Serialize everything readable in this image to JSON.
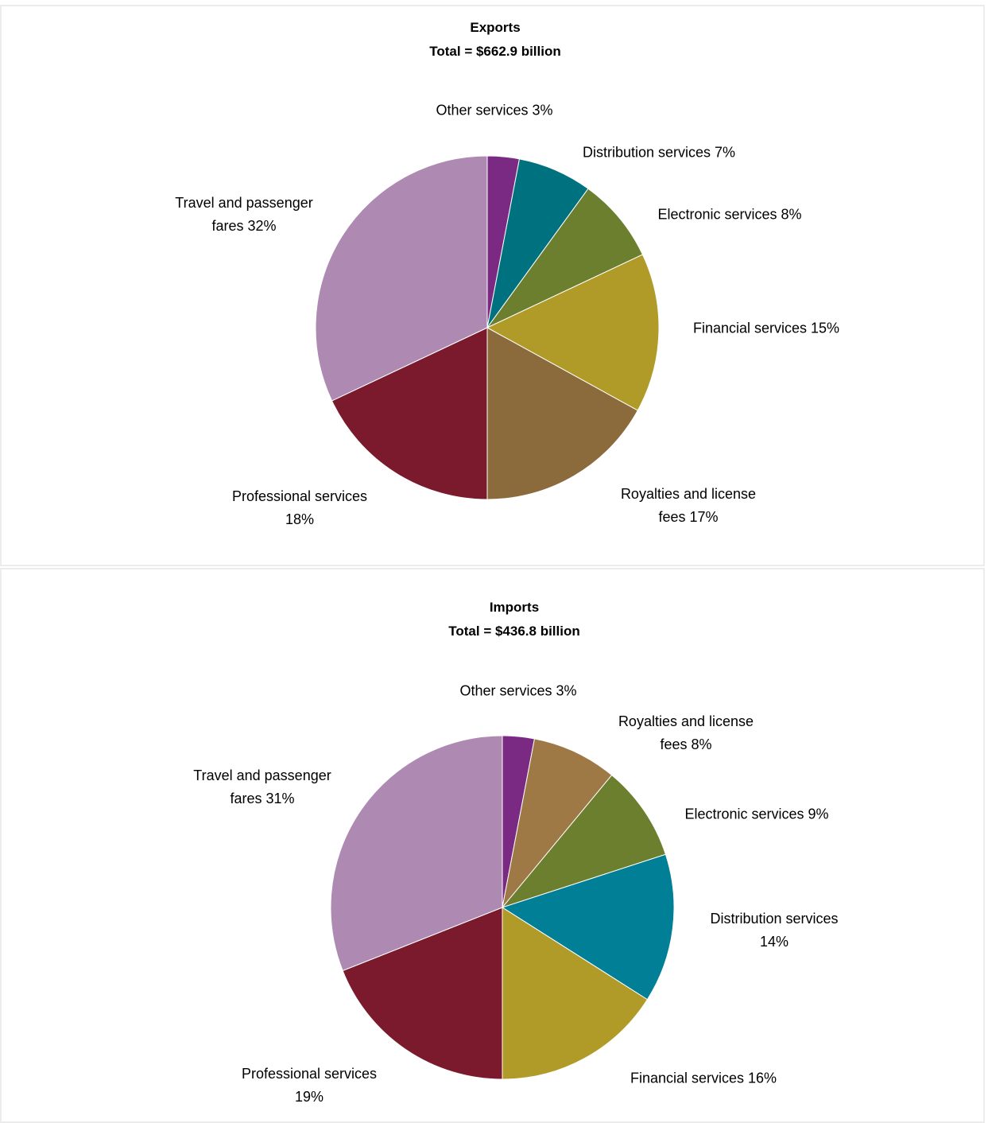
{
  "chart_data": [
    {
      "type": "pie",
      "title": "Exports",
      "subtitle": "Total = $662.9 billion",
      "categories": [
        "Other services",
        "Distribution services",
        "Electronic services",
        "Financial services",
        "Royalties and license fees",
        "Professional services",
        "Travel and passenger fares"
      ],
      "values": [
        3,
        7,
        8,
        15,
        17,
        18,
        32
      ],
      "value_labels": [
        "3%",
        "7%",
        "8%",
        "15%",
        "17%",
        "18%",
        "32%"
      ],
      "colors": [
        "#7b2a83",
        "#00717f",
        "#6b7f2e",
        "#b09a28",
        "#8b6a3c",
        "#7a1a2c",
        "#ae8ab3"
      ]
    },
    {
      "type": "pie",
      "title": "Imports",
      "subtitle": "Total = $436.8 billion",
      "categories": [
        "Other services",
        "Royalties and license fees",
        "Electronic services",
        "Distribution services",
        "Financial services",
        "Professional services",
        "Travel and passenger fares"
      ],
      "values": [
        3,
        8,
        9,
        14,
        16,
        19,
        31
      ],
      "value_labels": [
        "3%",
        "8%",
        "9%",
        "14%",
        "16%",
        "19%",
        "31%"
      ],
      "colors": [
        "#7b2a83",
        "#9e7845",
        "#6b7f2e",
        "#007f96",
        "#b09a28",
        "#7a1a2c",
        "#ae8ab3"
      ]
    }
  ]
}
